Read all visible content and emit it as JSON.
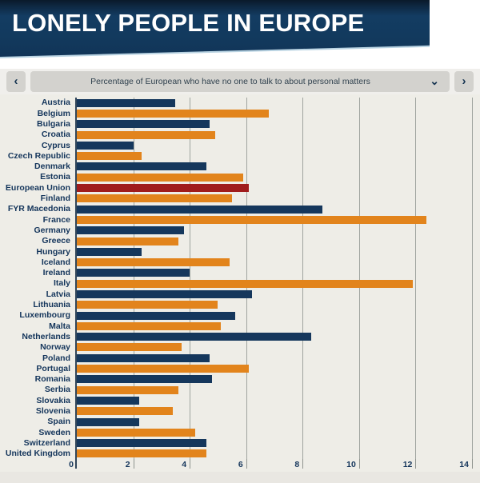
{
  "header": {
    "title": "LONELY PEOPLE IN EUROPE"
  },
  "selector": {
    "label": "Percentage of European who have no one to talk to about personal matters",
    "icons": {
      "prev": "‹",
      "next": "›",
      "dropdown": "⌄"
    }
  },
  "colors": {
    "banner_navy": "#123a5e",
    "bar_navy": "#15375c",
    "bar_orange": "#e2841c",
    "bar_red": "#a01c1c",
    "chart_background": "#eeede7",
    "label_text": "#14355b"
  },
  "chart_data": {
    "type": "bar",
    "orientation": "horizontal",
    "title": "Percentage of European who have no one to talk to about personal matters",
    "xlabel": "",
    "ylabel": "",
    "xlim": [
      0,
      14
    ],
    "x_ticks": [
      0,
      2,
      4,
      6,
      8,
      10,
      12,
      14
    ],
    "grid": true,
    "legend": "none",
    "highlighted_category": "European Union",
    "palette": {
      "navy": "#15375c",
      "orange": "#e2841c",
      "red": "#a01c1c"
    },
    "categories": [
      "Austria",
      "Belgium",
      "Bulgaria",
      "Croatia",
      "Cyprus",
      "Czech Republic",
      "Denmark",
      "Estonia",
      "European Union",
      "Finland",
      "FYR Macedonia",
      "France",
      "Germany",
      "Greece",
      "Hungary",
      "Iceland",
      "Ireland",
      "Italy",
      "Latvia",
      "Lithuania",
      "Luxembourg",
      "Malta",
      "Netherlands",
      "Norway",
      "Poland",
      "Portugal",
      "Romania",
      "Serbia",
      "Slovakia",
      "Slovenia",
      "Spain",
      "Sweden",
      "Switzerland",
      "United Kingdom"
    ],
    "values": [
      3.5,
      6.8,
      4.7,
      4.9,
      2.0,
      2.3,
      4.6,
      5.9,
      6.1,
      5.5,
      8.7,
      12.4,
      3.8,
      3.6,
      2.3,
      5.4,
      4.0,
      11.9,
      6.2,
      5.0,
      5.6,
      5.1,
      8.3,
      3.7,
      4.7,
      6.1,
      4.8,
      3.6,
      2.2,
      3.4,
      2.2,
      4.2,
      4.6,
      4.6
    ],
    "colors": [
      "navy",
      "orange",
      "navy",
      "orange",
      "navy",
      "orange",
      "navy",
      "orange",
      "red",
      "orange",
      "navy",
      "orange",
      "navy",
      "orange",
      "navy",
      "orange",
      "navy",
      "orange",
      "navy",
      "orange",
      "navy",
      "orange",
      "navy",
      "orange",
      "navy",
      "orange",
      "navy",
      "orange",
      "navy",
      "orange",
      "navy",
      "orange",
      "navy",
      "orange"
    ]
  }
}
